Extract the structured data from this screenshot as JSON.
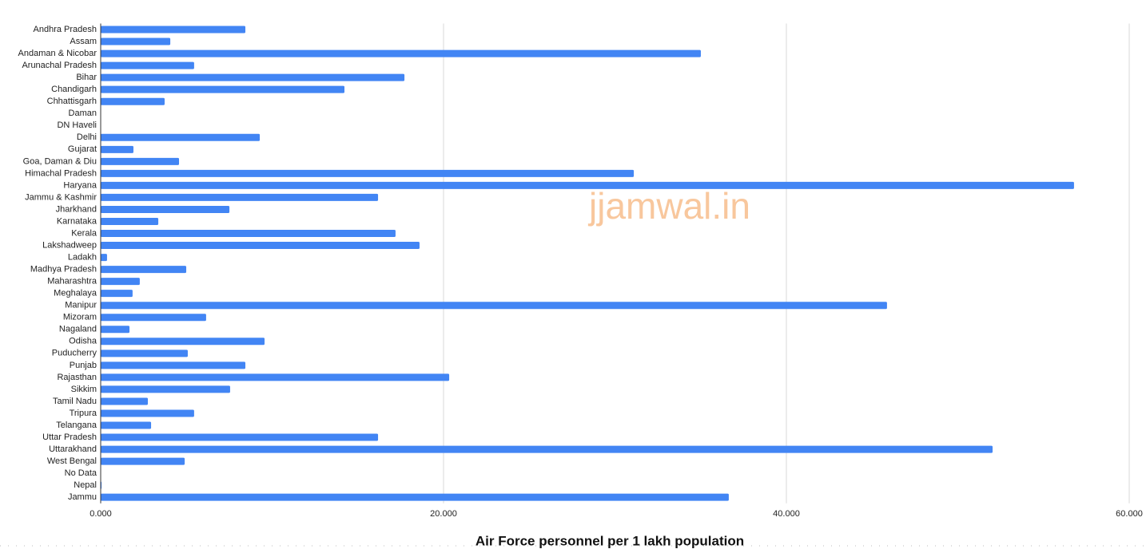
{
  "chart_data": {
    "type": "hbar",
    "title": "Air Force personnel per 1 lakh population",
    "watermark": "jjamwal.in",
    "categories": [
      "Andhra Pradesh",
      "Assam",
      "Andaman & Nicobar",
      "Arunachal Pradesh",
      "Bihar",
      "Chandigarh",
      "Chhattisgarh",
      "Daman",
      "DN Haveli",
      "Delhi",
      "Gujarat",
      "Goa, Daman & Diu",
      "Himachal Pradesh",
      "Haryana",
      "Jammu & Kashmir",
      "Jharkhand",
      "Karnataka",
      "Kerala",
      "Lakshadweep",
      "Ladakh",
      "Madhya Pradesh",
      "Maharashtra",
      "Meghalaya",
      "Manipur",
      "Mizoram",
      "Nagaland",
      "Odisha",
      "Puducherry",
      "Punjab",
      "Rajasthan",
      "Sikkim",
      "Tamil Nadu",
      "Tripura",
      "Telangana",
      "Uttar Pradesh",
      "Uttarakhand",
      "West Bengal",
      "No Data",
      "Nepal",
      "Jammu"
    ],
    "values": [
      8.44,
      4.06,
      35.01,
      5.45,
      17.72,
      14.22,
      3.73,
      0,
      0,
      9.28,
      1.91,
      4.57,
      31.1,
      56.78,
      16.18,
      7.51,
      3.36,
      17.2,
      18.6,
      0.37,
      4.99,
      2.28,
      1.86,
      45.87,
      6.15,
      1.68,
      9.56,
      5.08,
      8.44,
      20.33,
      7.55,
      2.75,
      5.45,
      2.94,
      16.18,
      52.03,
      4.9,
      0,
      0.05,
      36.64
    ],
    "color": "#4285f4",
    "xlim": [
      0,
      60
    ],
    "xticks": [
      {
        "value": 0,
        "label": "0.000"
      },
      {
        "value": 20,
        "label": "20.000"
      },
      {
        "value": 40,
        "label": "40.000"
      },
      {
        "value": 60,
        "label": "60.000"
      }
    ],
    "grid": true
  }
}
